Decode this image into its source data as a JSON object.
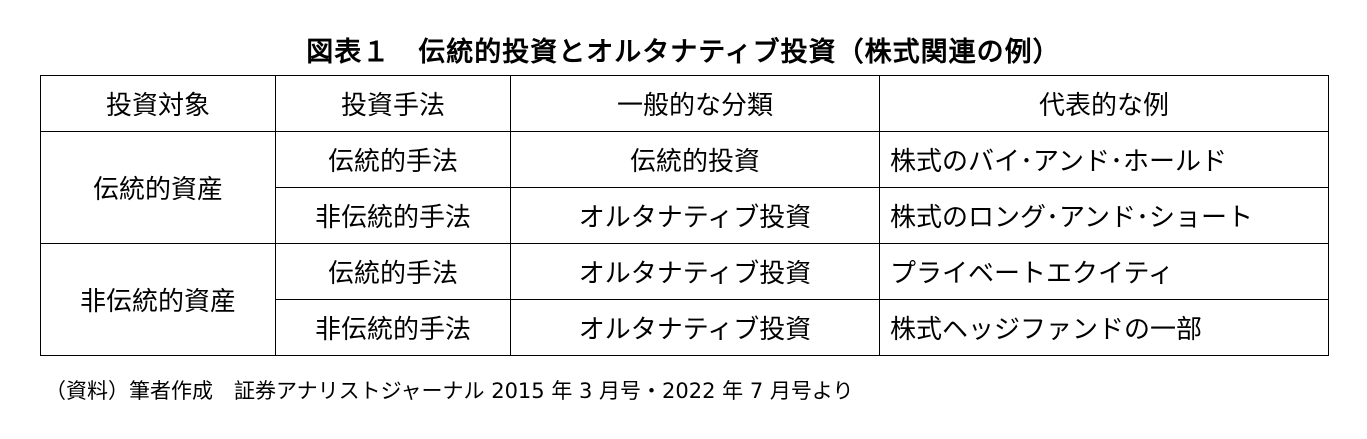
{
  "title": "図表１　伝統的投資とオルタナティブ投資（株式関連の例）",
  "headers": [
    "投資対象",
    "投資手法",
    "一般的な分類",
    "代表的な例"
  ],
  "groups": [
    {
      "asset": "伝統的資産",
      "rows": [
        {
          "method": "伝統的手法",
          "class": "伝統的投資",
          "example": "株式のバイ･アンド･ホールド"
        },
        {
          "method": "非伝統的手法",
          "class": "オルタナティブ投資",
          "example": "株式のロング･アンド･ショート"
        }
      ]
    },
    {
      "asset": "非伝統的資産",
      "rows": [
        {
          "method": "伝統的手法",
          "class": "オルタナティブ投資",
          "example": "プライベートエクイティ"
        },
        {
          "method": "非伝統的手法",
          "class": "オルタナティブ投資",
          "example": "株式ヘッジファンドの一部"
        }
      ]
    }
  ],
  "footer": "（資料）筆者作成　証券アナリストジャーナル 2015 年 3 月号・2022 年 7 月号より"
}
